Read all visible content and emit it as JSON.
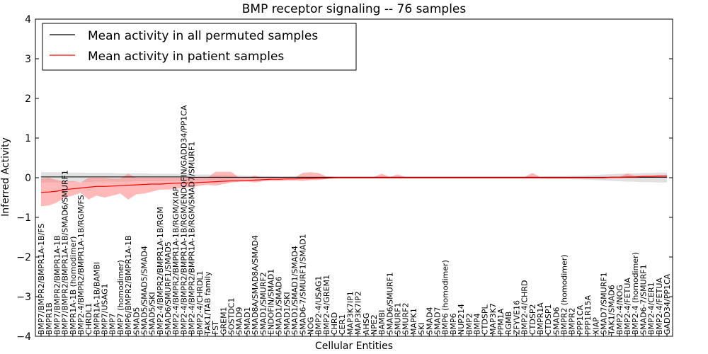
{
  "chart_data": {
    "type": "line",
    "title": "BMP receptor signaling -- 76 samples",
    "xlabel": "Cellular Entities",
    "ylabel": "Inferred Activity",
    "ylim": [
      -4,
      4
    ],
    "yticks": [
      -4,
      -3,
      -2,
      -1,
      0,
      1,
      2,
      3,
      4
    ],
    "legend_position": "top-left",
    "colors": {
      "permuted": "#000000",
      "patient": "#ff0000",
      "permuted_band": "#bdbdbd",
      "patient_band": "#ff7f7f"
    },
    "categories": [
      "BMP7/BMPR2/BMPR1A-1B/FS",
      "BMPR1B",
      "BMP7/BMPR2/BMPR1A-1B",
      "BMP7/BMPR2/BMPR1A-1B/SMAD6/SMURF1",
      "BMPR1A-1B (homodimer)",
      "BMP2-4/BMPR2/BMPR1A-1B/RGM/FS",
      "CHRDL1",
      "BMPR1A-1B/BAMBI",
      "BMP7/USAG1",
      "BMP7",
      "BMP7 (homodimer)",
      "BMP6/BMPR2/BMPR1A-1B",
      "SMAD5",
      "SMAD5/SMAD5/SMAD4",
      "SMAD5/SKI",
      "BMP2-4/BMPR2/BMPR1A-1B/RGM",
      "SMAD6/SMURF1/SMAD5",
      "BMP2-4/BMPR2/BMPR1A-1B/RGM/XIAP",
      "BMP2-4/BMPR2/BMPR1A-1B/RGM/ENDOFIN/GADD34/PP1CA",
      "BMP2-4/BMPR2/BMPR1A-1B/RGM/SMAD7/SMURF1",
      "BMP2-4/CHRDL1",
      "TAK1/TAB family",
      "FST",
      "GREM1",
      "SOSTDC1",
      "SMAD9",
      "SMAD1",
      "SMAD8A/SMAD8A/SMAD4",
      "SMAD1/SMURF2",
      "ENDOFIN/SMAD1",
      "SMAD1/SMAD6",
      "SMAD1/SKI",
      "SMAD1/SMAD1/SMAD4",
      "SMAD6-7/SMURF1/SMAD1",
      "NOG",
      "BMP2-4/USAG1",
      "BMP2-4/GREM1",
      "CHRD",
      "CER1",
      "MAP3K7IP1",
      "MAP3K7IP2",
      "AHSG",
      "NPE2",
      "BAMBI",
      "SMAD6/SMURF1",
      "SMURF1",
      "SMURF2",
      "MAPK1",
      "SKI",
      "SMAD4",
      "SMAD7",
      "BMP6 (homodimer)",
      "BMP6",
      "NUP214",
      "BMP2",
      "BMP4",
      "CTDSPL",
      "MAP3K7",
      "PPM1A",
      "RGMB",
      "ZFYVE16",
      "BMP2-4/CHRD",
      "CTDSP2",
      "BMPR1A",
      "CTDSP1",
      "SMAD6",
      "BMPR2 (homodimer)",
      "BMPR2",
      "PPP1CA",
      "PPP1R15A",
      "XIAP",
      "SMAD7/SMURF1",
      "TAK1/SMAD6",
      "BMP2-4/NOG",
      "BMP2-4/FETUA",
      "BMP2-4 (homodimer)",
      "SMAD6-7/SMURF1",
      "BMP2-4/CER1",
      "BMP2-4/FETUA",
      "GADD34/PP1CA"
    ],
    "series": [
      {
        "name": "Mean activity in all permuted samples",
        "values": [
          0.02,
          0.02,
          0.02,
          0.02,
          0.02,
          0.02,
          0.02,
          0.02,
          0.02,
          0.02,
          0.02,
          0.02,
          0.02,
          0.02,
          0.02,
          0.02,
          0.02,
          0.02,
          0.02,
          0.01,
          0.01,
          0.01,
          0.01,
          0.01,
          0.01,
          0.01,
          0.01,
          0.01,
          0.01,
          0.01,
          0.01,
          0.01,
          0.01,
          0.01,
          0.01,
          0.01,
          0.01,
          0.01,
          0.01,
          0.01,
          0.01,
          0.01,
          0.01,
          0.01,
          0.01,
          0.01,
          0.01,
          0.01,
          0.01,
          0.01,
          0.01,
          0.01,
          0.01,
          0.01,
          0.01,
          0.01,
          0.01,
          0.01,
          0.01,
          0.01,
          0.01,
          0.01,
          0.01,
          0.01,
          0.01,
          0.01,
          0.01,
          0.01,
          0.01,
          0.01,
          0.01,
          0.01,
          0.01,
          0.01,
          0.01,
          0.01,
          0.01,
          0.01,
          0.01,
          0.01
        ],
        "lower": [
          -0.12,
          -0.12,
          -0.12,
          -0.12,
          -0.11,
          -0.11,
          -0.11,
          -0.1,
          -0.1,
          -0.1,
          -0.1,
          -0.1,
          -0.09,
          -0.09,
          -0.09,
          -0.09,
          -0.08,
          -0.08,
          -0.08,
          -0.08,
          -0.07,
          -0.07,
          -0.06,
          -0.06,
          -0.05,
          -0.05,
          -0.04,
          -0.04,
          -0.03,
          -0.03,
          -0.02,
          -0.02,
          -0.02,
          -0.02,
          -0.02,
          -0.02,
          -0.02,
          -0.02,
          -0.02,
          -0.02,
          -0.02,
          -0.02,
          -0.02,
          -0.02,
          -0.02,
          -0.02,
          -0.02,
          -0.02,
          -0.02,
          -0.02,
          -0.02,
          -0.02,
          -0.02,
          -0.02,
          -0.02,
          -0.02,
          -0.02,
          -0.02,
          -0.02,
          -0.02,
          -0.02,
          -0.02,
          -0.02,
          -0.02,
          -0.03,
          -0.03,
          -0.03,
          -0.04,
          -0.04,
          -0.05,
          -0.06,
          -0.07,
          -0.08,
          -0.09,
          -0.1,
          -0.1,
          -0.11,
          -0.11,
          -0.12,
          -0.12
        ],
        "upper": [
          0.14,
          0.14,
          0.14,
          0.13,
          0.13,
          0.13,
          0.12,
          0.12,
          0.12,
          0.12,
          0.11,
          0.11,
          0.11,
          0.11,
          0.1,
          0.1,
          0.1,
          0.1,
          0.09,
          0.09,
          0.08,
          0.08,
          0.07,
          0.07,
          0.06,
          0.06,
          0.05,
          0.05,
          0.04,
          0.04,
          0.03,
          0.03,
          0.03,
          0.03,
          0.03,
          0.03,
          0.03,
          0.03,
          0.03,
          0.03,
          0.03,
          0.03,
          0.03,
          0.03,
          0.03,
          0.03,
          0.03,
          0.03,
          0.03,
          0.03,
          0.03,
          0.03,
          0.03,
          0.03,
          0.03,
          0.03,
          0.03,
          0.03,
          0.03,
          0.03,
          0.03,
          0.03,
          0.03,
          0.03,
          0.04,
          0.04,
          0.04,
          0.05,
          0.05,
          0.06,
          0.07,
          0.08,
          0.09,
          0.1,
          0.11,
          0.11,
          0.12,
          0.12,
          0.13,
          0.13
        ]
      },
      {
        "name": "Mean activity in patient samples",
        "values": [
          -0.37,
          -0.36,
          -0.34,
          -0.3,
          -0.28,
          -0.26,
          -0.24,
          -0.22,
          -0.22,
          -0.21,
          -0.2,
          -0.19,
          -0.18,
          -0.17,
          -0.16,
          -0.16,
          -0.15,
          -0.14,
          -0.13,
          -0.13,
          -0.12,
          -0.11,
          -0.1,
          -0.09,
          -0.08,
          -0.08,
          -0.07,
          -0.06,
          -0.05,
          -0.04,
          -0.04,
          -0.03,
          -0.03,
          -0.02,
          -0.02,
          -0.01,
          -0.01,
          0,
          0,
          0,
          0,
          0,
          0,
          0,
          0,
          0,
          0,
          0,
          0,
          0,
          0,
          0,
          0,
          0,
          0,
          0,
          0,
          0,
          0,
          0,
          0,
          0,
          0,
          0,
          0,
          0,
          0,
          0,
          0,
          0,
          0,
          0,
          0.01,
          0.01,
          0.02,
          0.02,
          0.03,
          0.03,
          0.04,
          0.04
        ],
        "lower": [
          -0.72,
          -0.7,
          -0.62,
          -0.5,
          -0.45,
          -0.38,
          -0.55,
          -0.45,
          -0.5,
          -0.45,
          -0.4,
          -0.55,
          -0.42,
          -0.4,
          -0.35,
          -0.3,
          -0.3,
          -0.28,
          -0.25,
          -0.24,
          -0.2,
          -0.18,
          -0.2,
          -0.16,
          -0.12,
          -0.1,
          -0.1,
          -0.12,
          -0.09,
          -0.08,
          -0.08,
          -0.07,
          -0.07,
          -0.08,
          -0.06,
          -0.06,
          -0.03,
          -0.02,
          -0.02,
          -0.02,
          -0.02,
          -0.02,
          -0.02,
          -0.02,
          -0.02,
          -0.02,
          -0.02,
          -0.02,
          -0.02,
          -0.02,
          -0.02,
          -0.02,
          -0.02,
          -0.02,
          -0.02,
          -0.02,
          -0.02,
          -0.02,
          -0.02,
          -0.02,
          -0.02,
          -0.02,
          -0.02,
          -0.02,
          -0.02,
          -0.02,
          -0.02,
          -0.02,
          -0.02,
          -0.02,
          -0.02,
          -0.02,
          -0.02,
          -0.02,
          -0.01,
          -0.01,
          0,
          0,
          0.01,
          0.01
        ],
        "upper": [
          -0.02,
          0,
          -0.06,
          -0.1,
          -0.08,
          -0.12,
          0,
          0,
          0,
          -0.02,
          -0.02,
          0.1,
          0,
          0,
          0,
          0,
          0,
          0,
          0,
          0,
          0,
          0,
          0.15,
          0.15,
          0.15,
          0,
          0,
          0.05,
          0,
          0,
          0,
          0,
          0,
          0.12,
          0.14,
          0.12,
          0.03,
          0.02,
          0.02,
          0.02,
          0.02,
          0.02,
          0.02,
          0.1,
          0.02,
          0.08,
          0.02,
          0.02,
          0.02,
          0.02,
          0.02,
          0.02,
          0.02,
          0.02,
          0.02,
          0.02,
          0.02,
          0.02,
          0.02,
          0.02,
          0.02,
          0.02,
          0.12,
          0.02,
          0.02,
          0.02,
          0.02,
          0.02,
          0.02,
          0.02,
          0.02,
          0.02,
          0.03,
          0.03,
          0.1,
          0.05,
          0.06,
          0.06,
          0.07,
          0.07
        ]
      }
    ]
  }
}
